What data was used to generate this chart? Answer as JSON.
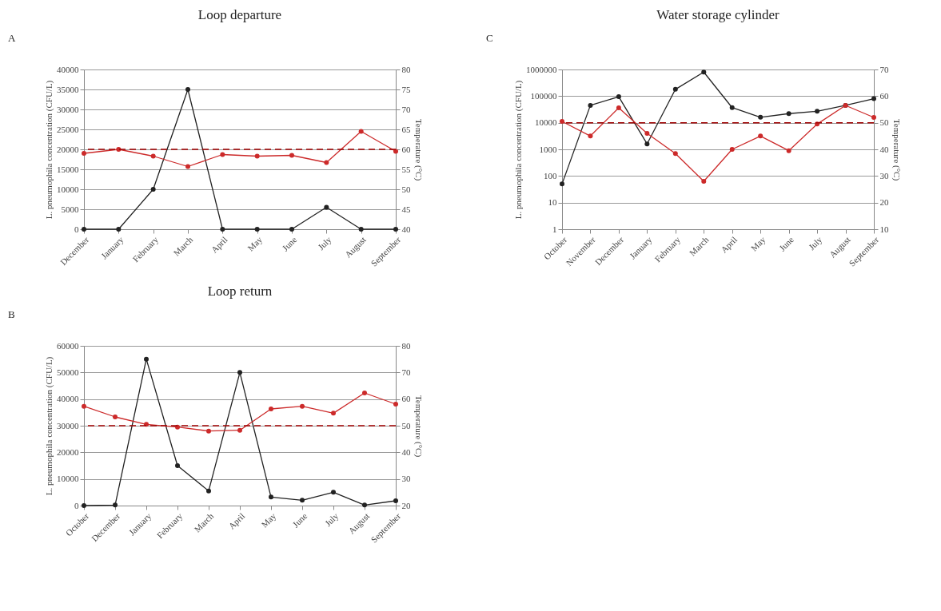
{
  "chart_data": [
    {
      "type": "line",
      "title": "Loop departure",
      "annotations": [
        "A"
      ],
      "ylabel": "L. pneumophila concentration (CFU/L)",
      "y2label": "Temperature (°C)",
      "categories": [
        "December",
        "January",
        "February",
        "March",
        "April",
        "May",
        "June",
        "July",
        "August",
        "September"
      ],
      "series": [
        {
          "color": "#222222",
          "values": [
            0,
            0,
            10000,
            35000,
            0,
            0,
            0,
            5500,
            0,
            0
          ]
        },
        {
          "color": "#cc2a2a",
          "axis": "y2",
          "values": [
            59,
            60,
            58.3,
            55.7,
            58.7,
            58.3,
            58.5,
            56.7,
            64.5,
            59.5
          ]
        }
      ],
      "ylim": [
        0,
        40000
      ],
      "yticks": [
        0,
        5000,
        10000,
        15000,
        20000,
        25000,
        30000,
        35000,
        40000
      ],
      "y2lim": [
        40,
        80
      ],
      "y2ticks": [
        40,
        45,
        50,
        55,
        60,
        65,
        70,
        75,
        80
      ],
      "ref_lines": [
        {
          "axis": "y2",
          "value": 60,
          "color": "#a00000",
          "line_style": "dashed"
        }
      ],
      "grid": "y",
      "marker": "circle",
      "line_style": "solid",
      "legend": false
    },
    {
      "type": "line",
      "title": "Water storage cylinder",
      "annotations": [
        "C"
      ],
      "ylabel": "L. pneumophila concentration (CFU/L)",
      "y2label": "Temperature (°C)",
      "categories": [
        "October",
        "November",
        "December",
        "January",
        "February",
        "March",
        "April",
        "May",
        "June",
        "July",
        "August",
        "September"
      ],
      "series": [
        {
          "color": "#222222",
          "values": [
            50,
            45000,
            95000,
            1600,
            180000,
            800000,
            37000,
            16000,
            22000,
            27000,
            45000,
            80000
          ]
        },
        {
          "color": "#cc2a2a",
          "axis": "y2",
          "values": [
            50.5,
            45,
            55.6,
            46,
            38.4,
            28,
            40,
            45,
            39.5,
            49.5,
            56.5,
            52
          ]
        }
      ],
      "log": "y",
      "ylim": [
        1,
        1000000
      ],
      "yticks": [
        1,
        10,
        100,
        1000,
        10000,
        100000,
        1000000
      ],
      "y2lim": [
        10,
        70
      ],
      "y2ticks": [
        10,
        20,
        30,
        40,
        50,
        60,
        70
      ],
      "ref_lines": [
        {
          "axis": "y2",
          "value": 50,
          "color": "#a00000",
          "line_style": "dashed"
        }
      ],
      "grid": "y",
      "marker": "circle",
      "line_style": "solid",
      "legend": false
    },
    {
      "type": "line",
      "title": "Loop return",
      "annotations": [
        "B"
      ],
      "ylabel": "L. pneumophila concentration (CFU/L)",
      "y2label": "Temperature (°C)",
      "categories": [
        "October",
        "December",
        "January",
        "February",
        "March",
        "April",
        "May",
        "June",
        "July",
        "August",
        "September"
      ],
      "series": [
        {
          "color": "#222222",
          "values": [
            0,
            200,
            55000,
            15000,
            5500,
            50000,
            3200,
            2000,
            5000,
            200,
            1800
          ]
        },
        {
          "color": "#cc2a2a",
          "axis": "y2",
          "values": [
            57.3,
            53.3,
            50.5,
            49.5,
            48,
            48.3,
            56.3,
            57.3,
            54.7,
            62.3,
            58.1
          ]
        }
      ],
      "ylim": [
        0,
        60000
      ],
      "yticks": [
        0,
        10000,
        20000,
        30000,
        40000,
        50000,
        60000
      ],
      "y2lim": [
        20,
        80
      ],
      "y2ticks": [
        20,
        30,
        40,
        50,
        60,
        70,
        80
      ],
      "ref_lines": [
        {
          "axis": "y2",
          "value": 50,
          "color": "#a00000",
          "line_style": "dashed"
        }
      ],
      "grid": "y",
      "marker": "circle",
      "line_style": "solid",
      "legend": false
    }
  ]
}
